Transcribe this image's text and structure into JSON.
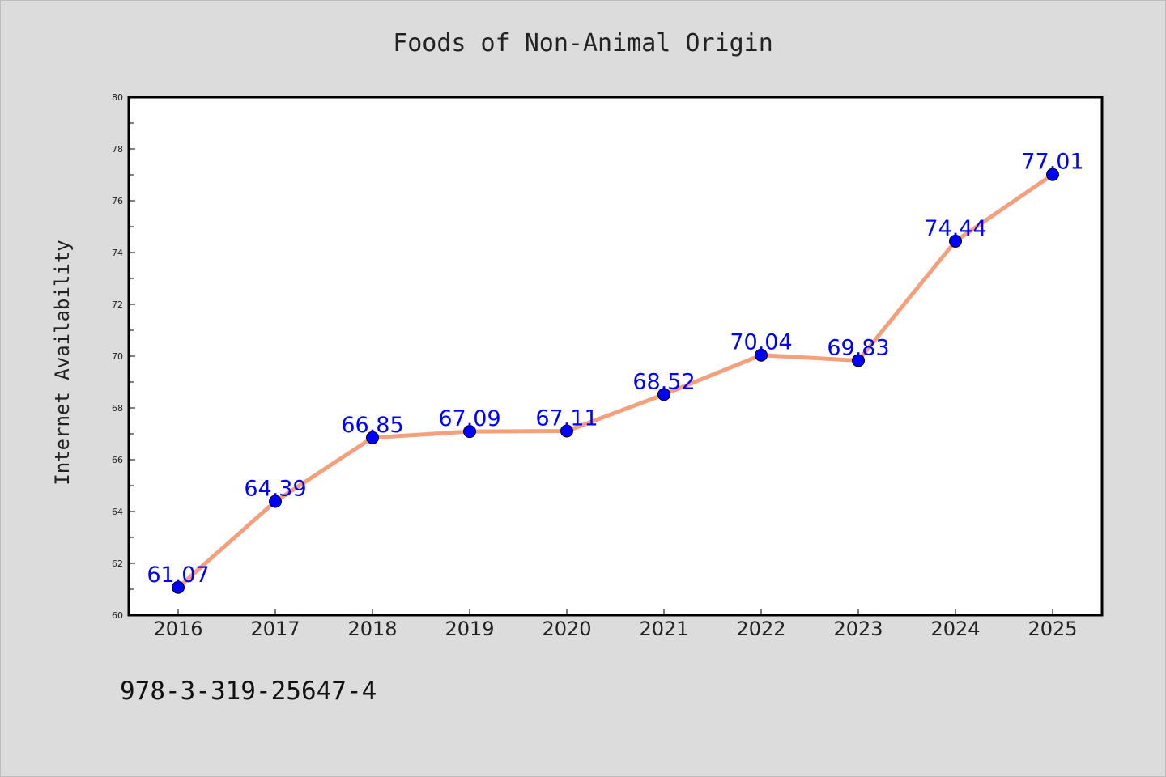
{
  "chart_data": {
    "type": "line",
    "title": "Foods of Non-Animal Origin",
    "xlabel": "",
    "ylabel": "Internet Availability",
    "categories": [
      "2016",
      "2017",
      "2018",
      "2019",
      "2020",
      "2021",
      "2022",
      "2023",
      "2024",
      "2025"
    ],
    "series": [
      {
        "values": [
          61.07,
          64.39,
          66.85,
          67.09,
          67.11,
          68.52,
          70.04,
          69.83,
          74.44,
          77.01
        ],
        "labels": [
          "61.07",
          "64.39",
          "66.85",
          "67.09",
          "67.11",
          "68.52",
          "70.04",
          "69.83",
          "74.44",
          "77.01"
        ],
        "line_color": "#f4a07c",
        "marker_color": "#0000ff"
      }
    ],
    "ylim": [
      60,
      80
    ],
    "yticks": [
      "60",
      "62",
      "64",
      "66",
      "68",
      "70",
      "72",
      "74",
      "76",
      "78",
      "80"
    ],
    "grid": false,
    "legend": "none"
  },
  "footer": {
    "text": "978-3-319-25647-4"
  },
  "colors": {
    "background": "#dcdcdc",
    "plot_background": "#ffffff",
    "axis": "#000000",
    "label": "#0000ff"
  }
}
